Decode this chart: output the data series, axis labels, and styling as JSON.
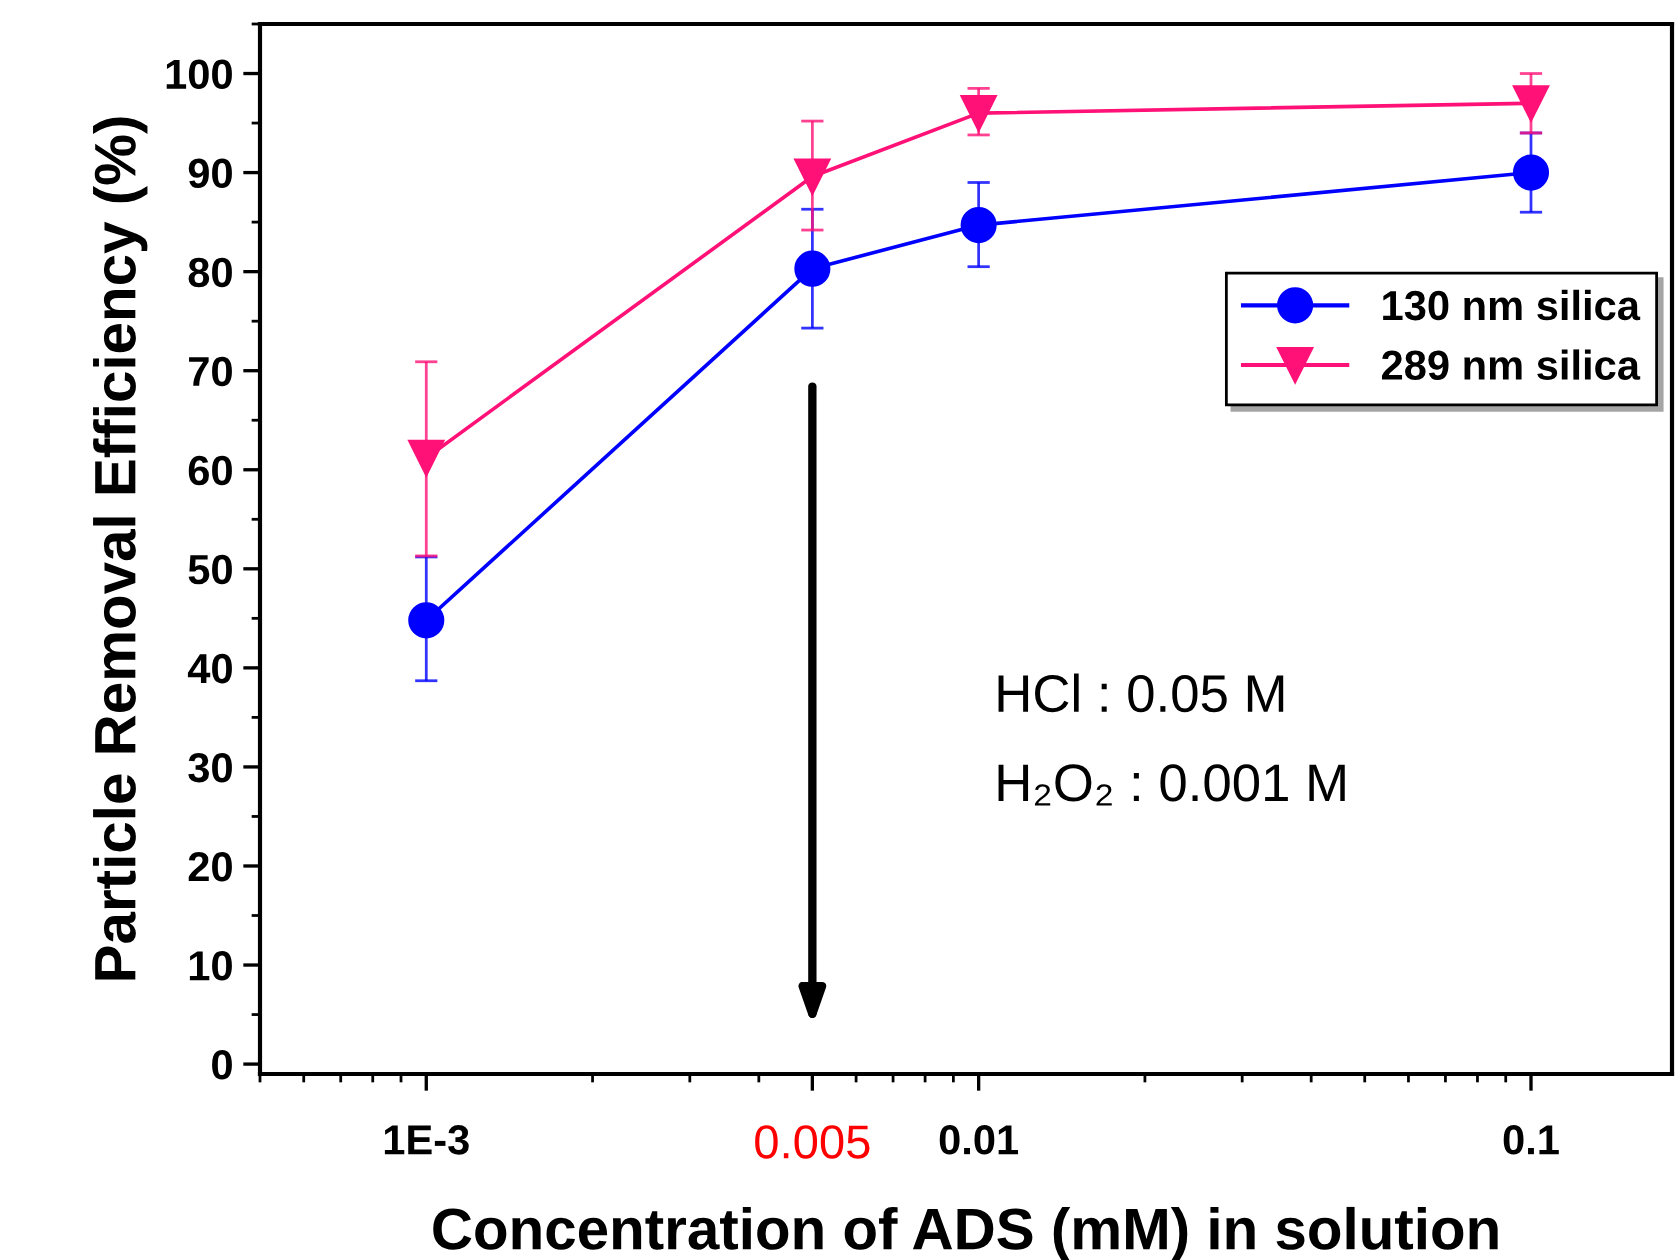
{
  "chart_data": {
    "type": "line",
    "xlabel": "Concentration of ADS (mM) in solution",
    "ylabel": "Particle Removal Efficiency (%)",
    "x": [
      0.001,
      0.005,
      0.01,
      0.1
    ],
    "series": [
      {
        "name": "130 nm silica",
        "color": "#0000ff",
        "marker": "circle",
        "values": [
          44.8,
          80.3,
          84.7,
          90.0
        ],
        "errors": [
          [
            38.7,
            51.2
          ],
          [
            74.3,
            86.3
          ],
          [
            80.5,
            89.0
          ],
          [
            86.0,
            94.0
          ]
        ]
      },
      {
        "name": "289 nm silica",
        "color": "#ff1177",
        "marker": "triangle",
        "values": [
          61.2,
          89.6,
          96.0,
          97.0
        ],
        "errors": [
          [
            51.3,
            70.9
          ],
          [
            84.2,
            95.2
          ],
          [
            93.8,
            98.5
          ],
          [
            94.0,
            100.0
          ]
        ]
      }
    ],
    "log": "x",
    "xlim": [
      0.0005,
      0.18
    ],
    "ylim": [
      -1,
      105
    ],
    "xticks": [
      {
        "value": 0.001,
        "label": "1E-3"
      },
      0.005,
      0.01,
      0.1
    ],
    "yticks": [
      0,
      10,
      20,
      30,
      40,
      50,
      60,
      70,
      80,
      90,
      100
    ],
    "legend": "right",
    "grid": false,
    "line_style": "solid",
    "annotations": [
      "HCl : 0.05 M",
      "H₂O₂ : 0.001 M"
    ]
  }
}
